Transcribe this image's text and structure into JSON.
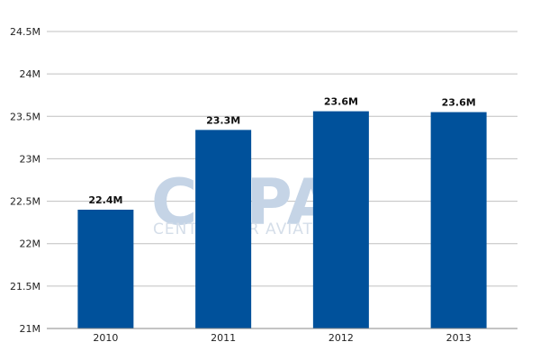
{
  "watermark": {
    "logo_text": "CAPA",
    "tagline": "CENTRE FOR AVIATION"
  },
  "colors": {
    "bar": "#00519b",
    "grid": "#c0c0c0",
    "axis": "#888888"
  },
  "chart_data": {
    "type": "bar",
    "title": "",
    "xlabel": "",
    "ylabel": "",
    "categories": [
      "2010",
      "2011",
      "2012",
      "2013"
    ],
    "values": [
      22.4,
      23.34,
      23.56,
      23.55
    ],
    "data_labels": [
      "22.4M",
      "23.3M",
      "23.6M",
      "23.6M"
    ],
    "ylim": [
      21,
      24.5
    ],
    "yticks": [
      21,
      21.5,
      22,
      22.5,
      23,
      23.5,
      24,
      24.5
    ],
    "ytick_labels": [
      "21M",
      "21.5M",
      "22M",
      "22.5M",
      "23M",
      "23.5M",
      "24M",
      "24.5M"
    ],
    "grid": true,
    "legend": "none"
  }
}
